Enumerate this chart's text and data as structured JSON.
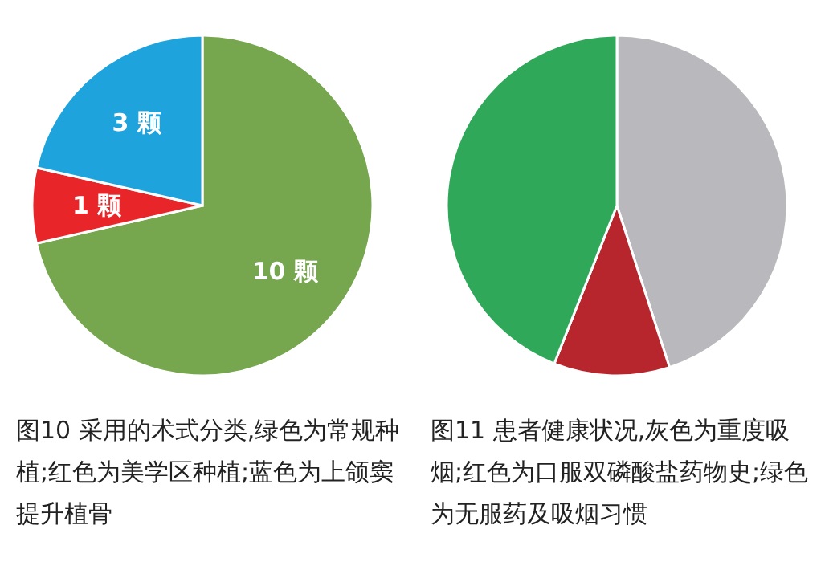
{
  "chart_data": [
    {
      "type": "pie",
      "title": "图10  采用的术式分类,绿色为常规种植;红色为美学区种植;蓝色为上颌窦提升植骨",
      "categories": [
        "10 颗",
        "1 颗",
        "3 颗"
      ],
      "values": [
        10,
        1,
        3
      ],
      "colors": [
        "#76a64e",
        "#e8262a",
        "#1fa3dc"
      ]
    },
    {
      "type": "pie",
      "title": "图11  患者健康状况,灰色为重度吸烟;红色为口服双磷酸盐药物史;绿色为无服药及吸烟习惯",
      "categories": [
        null,
        null,
        null
      ],
      "values": [
        45,
        11,
        44
      ],
      "colors": [
        "#b9b9bd",
        "#b8262d",
        "#2fa85a"
      ]
    }
  ]
}
